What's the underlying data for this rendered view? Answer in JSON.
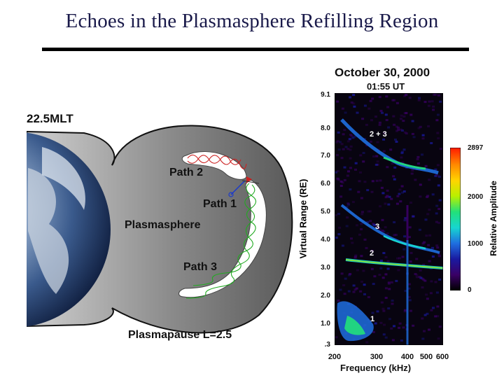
{
  "slide": {
    "title": "Echoes in the Plasmasphere Refilling Region"
  },
  "diagram": {
    "mlt_label": "22.5MLT",
    "path2_label": "Path 2",
    "path1_label": "Path 1",
    "plasmasphere_label": "Plasmasphere",
    "path3_label": "Path 3",
    "plasmapause_label": "Plasmapause L=2.5"
  },
  "plot": {
    "date": "October 30, 2000",
    "time": "01:55 UT",
    "y_axis_label": "Virtual Range (RE)",
    "x_axis_label": "Frequency (kHz)",
    "y_ticks": [
      "9.1",
      "8.0",
      "7.0",
      "6.0",
      "5.0",
      "4.0",
      "3.0",
      "2.0",
      "1.0",
      ".3"
    ],
    "x_ticks": [
      "200",
      "300",
      "400",
      "500",
      "600"
    ],
    "echo_labels": [
      "2 + 3",
      "3",
      "2",
      "1"
    ],
    "colorbar": {
      "title": "Relative Amplitude",
      "ticks": [
        "2897",
        "2000",
        "1000",
        "0"
      ],
      "colors": [
        "#000000",
        "#3a0066",
        "#1a1aa0",
        "#1f6fe0",
        "#17d6d0",
        "#22e07a",
        "#b8f000",
        "#ffd400",
        "#ff8a00",
        "#ff1a00"
      ]
    }
  }
}
